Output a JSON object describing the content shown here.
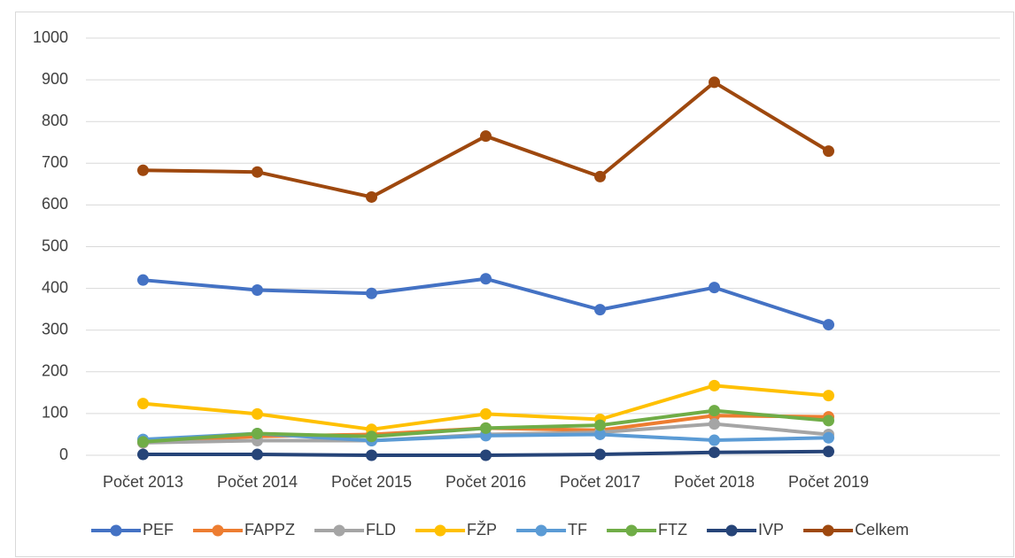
{
  "chart_data": {
    "type": "line",
    "categories": [
      "Počet 2013",
      "Počet 2014",
      "Počet 2015",
      "Počet 2016",
      "Počet 2017",
      "Počet 2018",
      "Počet 2019"
    ],
    "series": [
      {
        "name": "PEF",
        "color": "#4472c4",
        "values": [
          420,
          396,
          388,
          423,
          349,
          402,
          313
        ]
      },
      {
        "name": "FAPPZ",
        "color": "#ed7d31",
        "values": [
          30,
          45,
          50,
          65,
          60,
          95,
          92
        ]
      },
      {
        "name": "FLD",
        "color": "#a5a5a5",
        "values": [
          30,
          35,
          35,
          50,
          55,
          75,
          50
        ]
      },
      {
        "name": "FŽP",
        "color": "#ffc000",
        "values": [
          124,
          99,
          62,
          99,
          86,
          167,
          143
        ]
      },
      {
        "name": "TF",
        "color": "#5b9bd5",
        "values": [
          38,
          52,
          35,
          47,
          50,
          36,
          42
        ]
      },
      {
        "name": "FTZ",
        "color": "#70ad47",
        "values": [
          32,
          52,
          45,
          65,
          72,
          107,
          83
        ]
      },
      {
        "name": "IVP",
        "color": "#264478",
        "values": [
          2,
          2,
          0,
          0,
          2,
          7,
          9
        ]
      },
      {
        "name": "Celkem",
        "color": "#9e480e",
        "values": [
          683,
          679,
          619,
          765,
          668,
          894,
          729
        ]
      }
    ],
    "ylim": [
      0,
      1000
    ],
    "yticks": [
      0,
      100,
      200,
      300,
      400,
      500,
      600,
      700,
      800,
      900,
      1000
    ],
    "grid": true,
    "legend": "bottom"
  }
}
